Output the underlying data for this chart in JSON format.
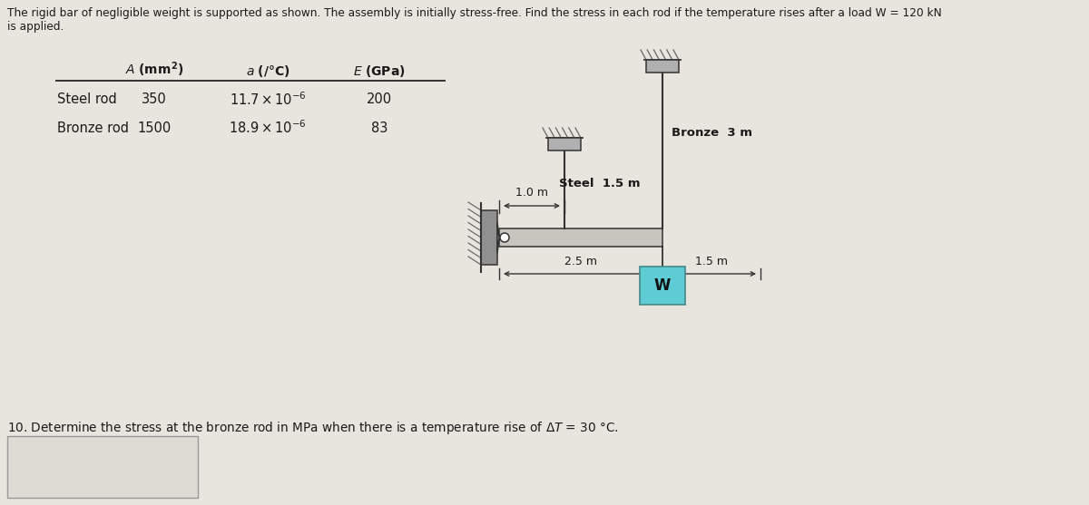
{
  "bg_color": "#e8e4de",
  "title_line1": "The rigid bar of negligible weight is supported as shown. The assembly is initially stress-free. Find the stress in each rod if the temperature rises after a load W = 120 kN",
  "title_line2": "is applied.",
  "row1_label": "Steel rod",
  "row2_label": "Bronze rod",
  "col1_header": "A (mm²)",
  "col2_header": "a (/°C)",
  "col3_header": "E (GPa)",
  "r1c1": "350",
  "r1c2": "11.7 × 10⁻⁶",
  "r1c3": "200",
  "r2c1": "1500",
  "r2c2": "18.9 × 10⁻⁶",
  "r2c3": "83",
  "steel_label": "Steel",
  "steel_len": "1.5 m",
  "bronze_label": "Bronze",
  "bronze_len": "3 m",
  "dim1": "1.0 m",
  "dim2": "2.5 m",
  "dim3": "1.5 m",
  "W_label": "W",
  "question": "10. Determine the stress at the bronze rod in MPa when there is a temperature rise of ΔT = 30 °C.",
  "bar_fill": "#c8c4be",
  "rod_fill": "#a8a8a8",
  "cap_fill": "#b0b0b0",
  "wall_fill": "#909090",
  "cyan_fill": "#5eccd4",
  "text_color": "#1a1a1a",
  "line_color": "#333333"
}
